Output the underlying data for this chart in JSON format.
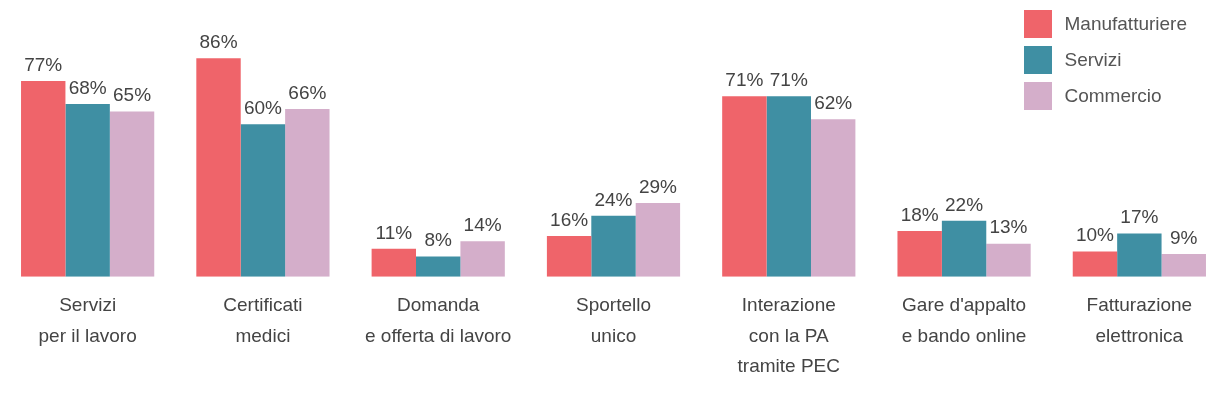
{
  "chart_data": {
    "type": "bar",
    "categories": [
      "Servizi\nper il lavoro",
      "Certificati\nmedici",
      "Domanda\ne offerta di lavoro",
      "Sportello\nunico",
      "Interazione\ncon la PA\ntramite PEC",
      "Gare d'appalto\ne bando online",
      "Fatturazione\nelettronica"
    ],
    "series": [
      {
        "name": "Manufatturiere",
        "color": "#ef646a",
        "values": [
          77,
          86,
          11,
          16,
          71,
          18,
          10
        ],
        "value_labels": [
          "77%",
          "86%",
          "11%",
          "16%",
          "71%",
          "18%",
          "10%"
        ]
      },
      {
        "name": "Servizi",
        "color": "#3f8fa3",
        "values": [
          68,
          60,
          8,
          24,
          71,
          22,
          17
        ],
        "value_labels": [
          "68%",
          "60%",
          "8%",
          "24%",
          "71%",
          "22%",
          "17%"
        ]
      },
      {
        "name": "Commercio",
        "color": "#d4aeca",
        "values": [
          65,
          66,
          14,
          29,
          62,
          13,
          9
        ],
        "value_labels": [
          "65%",
          "66%",
          "14%",
          "29%",
          "62%",
          "13%",
          "9%"
        ]
      }
    ],
    "tick_labels": "x",
    "grid": false,
    "legend": "top right"
  }
}
